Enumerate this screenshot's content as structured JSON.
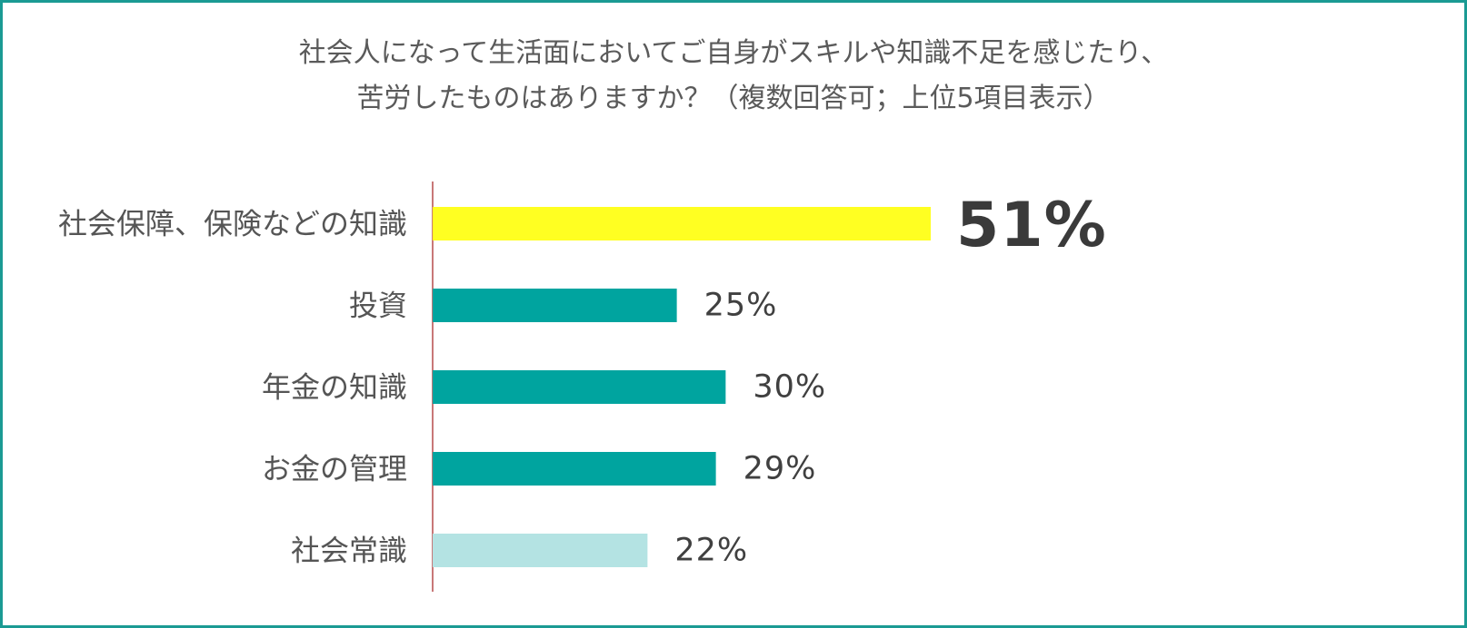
{
  "chart_data": {
    "type": "bar",
    "orientation": "horizontal",
    "title_lines": [
      "社会人になって生活面においてご自身がスキルや知識不足を感じたり、",
      "苦労したものはありますか？（複数回答可；上位5項目表示）"
    ],
    "categories": [
      "社会保障、保険などの知識",
      "投資",
      "年金の知識",
      "お金の管理",
      "社会常識"
    ],
    "values": [
      51,
      25,
      30,
      29,
      22
    ],
    "value_labels": [
      "51%",
      "25%",
      "30%",
      "29%",
      "22%"
    ],
    "unit": "%",
    "highlight_index": 0,
    "bar_colors": [
      "#ffff22",
      "#00a49f",
      "#00a49f",
      "#00a49f",
      "#b4e3e3"
    ],
    "xlim": [
      0,
      100
    ],
    "grid": false,
    "legend": "none"
  },
  "colors": {
    "frame": "#1a9a93",
    "axis_line": "#c87878",
    "highlight": "#ffff22",
    "primary": "#00a49f",
    "light": "#b4e3e3"
  }
}
